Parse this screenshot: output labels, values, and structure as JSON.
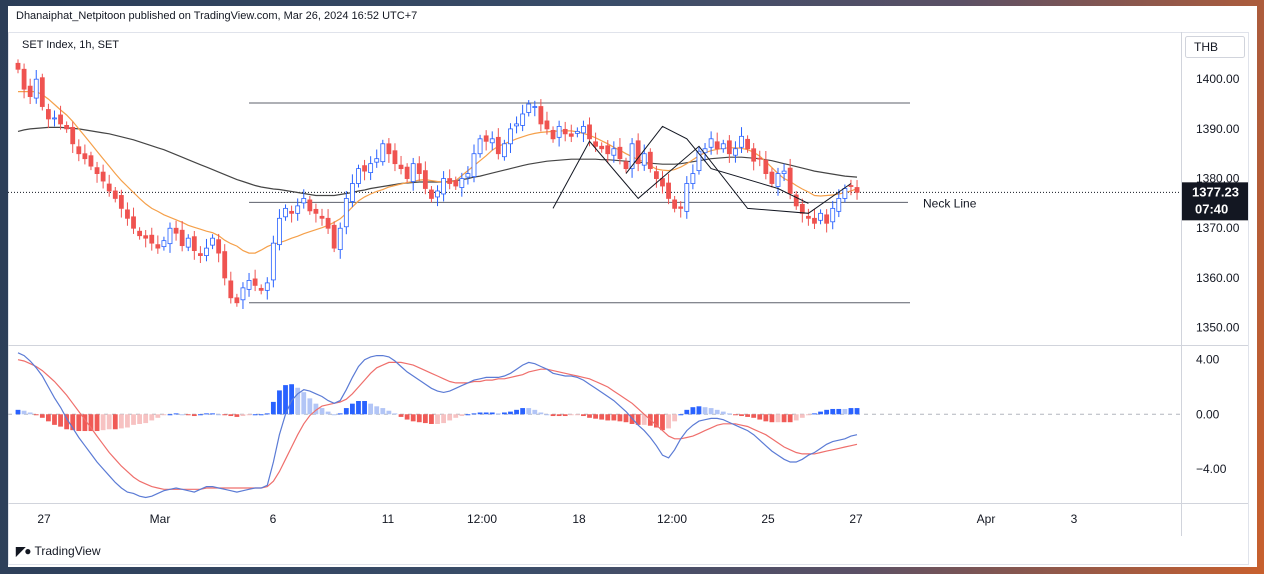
{
  "header": {
    "published_text": "Dhanaiphat_Netpitoon published on TradingView.com, Mar 26, 2024 16:52 UTC+7"
  },
  "symbol_label": "SET Index, 1h, SET",
  "currency_label": "THB",
  "footer": {
    "brand": "TradingView",
    "brand_icon": "tradingview-logo-icon"
  },
  "colors": {
    "up": "#2962ff",
    "down": "#ef5350",
    "ma_fast": "#f5a04a",
    "ma_slow": "#454545",
    "macd_line": "#5b7bd5",
    "signal_line": "#ef6f6c",
    "hist_up_strong": "#2962ff",
    "hist_up_weak": "#b2c5f6",
    "hist_down_strong": "#f05a56",
    "hist_down_weak": "#f7c2c2",
    "price_label_bg": "#131722"
  },
  "chart_data": [
    {
      "type": "candlestick",
      "title": "SET Index, 1h, SET",
      "y_ticks": [
        1400,
        1390,
        1380,
        1370,
        1360,
        1350
      ],
      "y_tick_labels": [
        "1400.00",
        "1390.00",
        "1380.00",
        "1370.00",
        "1360.00",
        "1350.00"
      ],
      "ylim": [
        1346.5,
        1409.5
      ],
      "x_tick_labels": [
        "27",
        "Mar",
        "6",
        "11",
        "12:00",
        "18",
        "12:00",
        "25",
        "27",
        "Apr",
        "3"
      ],
      "current_price": "1377.23",
      "countdown": "07:40",
      "horizontal_levels": [
        {
          "name": "resistance",
          "value": 1395.2,
          "label": ""
        },
        {
          "name": "neck-line",
          "value": 1375.2,
          "label": "Neck Line"
        },
        {
          "name": "support",
          "value": 1355.0,
          "label": ""
        }
      ],
      "close": [
        1402.0,
        1398.0,
        1396.5,
        1400.0,
        1394.5,
        1392.0,
        1392.2,
        1391.0,
        1390.0,
        1387.0,
        1385.0,
        1384.0,
        1382.5,
        1381.0,
        1379.5,
        1377.5,
        1376.0,
        1374.0,
        1372.0,
        1370.0,
        1368.5,
        1368.0,
        1367.0,
        1366.0,
        1367.5,
        1370.0,
        1369.0,
        1366.5,
        1368.0,
        1365.5,
        1364.5,
        1366.0,
        1368.0,
        1365.0,
        1360.0,
        1356.0,
        1355.0,
        1358.0,
        1359.5,
        1358.5,
        1357.5,
        1359.0,
        1367.0,
        1372.0,
        1374.0,
        1373.0,
        1374.5,
        1376.0,
        1373.5,
        1373.0,
        1372.0,
        1370.0,
        1366.0,
        1370.0,
        1376.0,
        1379.0,
        1382.0,
        1381.5,
        1383.0,
        1384.0,
        1387.0,
        1385.0,
        1383.0,
        1382.0,
        1380.0,
        1383.0,
        1381.0,
        1378.0,
        1376.0,
        1377.5,
        1380.0,
        1379.0,
        1378.5,
        1380.0,
        1381.0,
        1385.0,
        1388.0,
        1387.5,
        1388.0,
        1385.0,
        1387.0,
        1390.0,
        1391.0,
        1393.0,
        1395.0,
        1394.5,
        1391.0,
        1390.0,
        1388.0,
        1390.5,
        1389.0,
        1388.5,
        1389.5,
        1390.5,
        1388.0,
        1386.5,
        1386.0,
        1385.0,
        1386.0,
        1384.0,
        1382.0,
        1387.0,
        1383.0,
        1385.0,
        1382.0,
        1380.0,
        1378.5,
        1376.0,
        1374.0,
        1374.0,
        1379.0,
        1381.0,
        1385.5,
        1386.0,
        1388.0,
        1386.0,
        1387.0,
        1385.0,
        1386.0,
        1388.5,
        1386.0,
        1383.5,
        1384.0,
        1381.0,
        1379.0,
        1381.0,
        1381.5,
        1377.0,
        1374.5,
        1373.0,
        1372.0,
        1371.0,
        1373.0,
        1371.0,
        1374.0,
        1376.0,
        1378.0,
        1378.5,
        1377.23
      ],
      "ma_fast": [
        1397.5,
        1397.5,
        1397.5,
        1397.5,
        1396.9,
        1396.0,
        1394.9,
        1393.8,
        1392.8,
        1391.5,
        1390.0,
        1388.5,
        1387.0,
        1385.5,
        1384.0,
        1382.5,
        1381.0,
        1379.6,
        1378.4,
        1377.2,
        1376.0,
        1374.9,
        1374.0,
        1373.4,
        1372.7,
        1372.2,
        1371.7,
        1371.2,
        1370.6,
        1370.2,
        1369.8,
        1369.4,
        1369.1,
        1368.5,
        1367.6,
        1366.9,
        1366.4,
        1365.5,
        1365.0,
        1365.0,
        1365.6,
        1366.3,
        1366.8,
        1367.1,
        1367.5,
        1368.0,
        1368.4,
        1368.9,
        1369.3,
        1369.7,
        1370.1,
        1370.6,
        1371.2,
        1371.9,
        1373.0,
        1374.3,
        1375.5,
        1376.3,
        1376.9,
        1377.4,
        1377.8,
        1378.3,
        1378.6,
        1378.9,
        1379.2,
        1379.4,
        1379.7,
        1379.8,
        1379.6,
        1379.4,
        1379.3,
        1379.2,
        1379.6,
        1380.6,
        1381.6,
        1382.6,
        1383.6,
        1384.6,
        1385.7,
        1386.5,
        1387.0,
        1387.5,
        1388.0,
        1388.4,
        1388.8,
        1389.1,
        1389.3,
        1389.4,
        1389.5,
        1389.6,
        1389.6,
        1389.6,
        1389.4,
        1389.1,
        1388.7,
        1388.2,
        1387.6,
        1387.0,
        1386.3,
        1385.7,
        1385.0,
        1384.4,
        1383.8,
        1383.4,
        1382.6,
        1381.9,
        1381.7,
        1381.6,
        1381.8,
        1382.3,
        1383.0,
        1383.8,
        1384.6,
        1385.2,
        1385.6,
        1385.9,
        1386.1,
        1386.2,
        1386.2,
        1386.1,
        1385.8,
        1385.3,
        1384.5,
        1383.4,
        1382.2,
        1381.0,
        1380.0,
        1379.4,
        1378.6,
        1377.9,
        1377.3,
        1376.6,
        1376.5,
        1376.6,
        1376.7,
        1376.9,
        1377.2,
        1377.5,
        1378.0
      ],
      "ma_slow": [
        1389.5,
        1389.8,
        1390.0,
        1390.1,
        1390.2,
        1390.3,
        1390.3,
        1390.3,
        1390.2,
        1390.1,
        1390.0,
        1389.8,
        1389.6,
        1389.4,
        1389.2,
        1389.0,
        1388.7,
        1388.4,
        1388.1,
        1387.8,
        1387.4,
        1387.0,
        1386.6,
        1386.2,
        1385.8,
        1385.3,
        1384.8,
        1384.3,
        1383.8,
        1383.3,
        1382.8,
        1382.3,
        1381.8,
        1381.3,
        1380.8,
        1380.3,
        1379.8,
        1379.4,
        1379.0,
        1378.6,
        1378.3,
        1378.1,
        1377.9,
        1377.8,
        1377.6,
        1377.4,
        1377.2,
        1377.0,
        1376.8,
        1376.6,
        1376.6,
        1376.6,
        1376.6,
        1376.8,
        1377.0,
        1377.2,
        1377.5,
        1377.7,
        1378.0,
        1378.2,
        1378.4,
        1378.6,
        1378.8,
        1379.0,
        1379.1,
        1379.2,
        1379.3,
        1379.3,
        1379.3,
        1379.3,
        1379.3,
        1379.4,
        1379.6,
        1379.8,
        1380.0,
        1380.3,
        1380.5,
        1380.8,
        1381.1,
        1381.4,
        1381.7,
        1382.0,
        1382.3,
        1382.6,
        1382.9,
        1383.1,
        1383.3,
        1383.5,
        1383.6,
        1383.7,
        1383.8,
        1383.9,
        1383.9,
        1383.9,
        1383.9,
        1383.9,
        1383.8,
        1383.8,
        1383.7,
        1383.6,
        1383.5,
        1383.4,
        1383.3,
        1383.2,
        1383.1,
        1383.0,
        1382.9,
        1382.9,
        1382.9,
        1383.0,
        1383.2,
        1383.4,
        1383.6,
        1383.8,
        1384.0,
        1384.1,
        1384.2,
        1384.3,
        1384.3,
        1384.3,
        1384.2,
        1384.1,
        1384.0,
        1383.8,
        1383.6,
        1383.3,
        1383.0,
        1382.7,
        1382.4,
        1382.1,
        1381.8,
        1381.5,
        1381.3,
        1381.1,
        1380.9,
        1380.7,
        1380.5,
        1380.4,
        1380.3
      ],
      "pattern_lines": [
        [
          [
            88,
            1374.0
          ],
          [
            94,
            1387.5
          ],
          [
            102,
            1376.0
          ],
          [
            112,
            1386.5
          ],
          [
            120,
            1374.0
          ],
          [
            130,
            1373.0
          ],
          [
            137,
            1379.0
          ]
        ],
        [
          [
            100,
            1381.0
          ],
          [
            106,
            1390.5
          ],
          [
            110,
            1388.0
          ],
          [
            114,
            1382.0
          ],
          [
            125,
            1378.0
          ],
          [
            130,
            1375.0
          ]
        ]
      ]
    },
    {
      "type": "macd",
      "y_ticks": [
        4.0,
        0.0,
        -4.0
      ],
      "y_tick_labels": [
        "4.00",
        "0.00",
        "−4.00"
      ],
      "ylim": [
        -6.5,
        5.0
      ],
      "macd": [
        4.5,
        4.3,
        3.9,
        3.4,
        2.8,
        2.0,
        1.2,
        0.5,
        -0.3,
        -1.0,
        -1.7,
        -2.3,
        -2.9,
        -3.5,
        -4.0,
        -4.5,
        -5.0,
        -5.4,
        -5.7,
        -5.8,
        -6.0,
        -6.1,
        -6.0,
        -5.8,
        -5.6,
        -5.5,
        -5.4,
        -5.5,
        -5.6,
        -5.7,
        -5.5,
        -5.3,
        -5.3,
        -5.4,
        -5.5,
        -5.6,
        -5.7,
        -5.6,
        -5.5,
        -5.4,
        -5.4,
        -5.2,
        -3.5,
        -1.5,
        0.0,
        1.0,
        1.5,
        1.8,
        1.7,
        1.5,
        1.3,
        1.0,
        0.8,
        1.0,
        1.8,
        2.7,
        3.5,
        4.0,
        4.2,
        4.3,
        4.3,
        4.2,
        3.9,
        3.5,
        3.1,
        2.8,
        2.5,
        2.2,
        1.9,
        1.7,
        1.6,
        1.7,
        1.9,
        2.1,
        2.3,
        2.5,
        2.6,
        2.7,
        2.7,
        2.7,
        2.8,
        3.0,
        3.3,
        3.6,
        3.8,
        3.7,
        3.5,
        3.3,
        3.0,
        2.9,
        2.8,
        2.8,
        2.7,
        2.5,
        2.2,
        1.9,
        1.6,
        1.3,
        1.0,
        0.6,
        0.2,
        -0.3,
        -0.8,
        -1.2,
        -1.7,
        -2.3,
        -3.0,
        -3.2,
        -2.6,
        -1.8,
        -1.2,
        -0.8,
        -0.5,
        -0.4,
        -0.3,
        -0.3,
        -0.4,
        -0.6,
        -0.8,
        -1.0,
        -1.2,
        -1.5,
        -1.9,
        -2.3,
        -2.7,
        -3.0,
        -3.3,
        -3.5,
        -3.5,
        -3.3,
        -3.0,
        -2.8,
        -2.5,
        -2.2,
        -2.0,
        -1.9,
        -1.8,
        -1.6,
        -1.5
      ],
      "signal": [
        4.0,
        3.9,
        3.7,
        3.5,
        3.2,
        2.8,
        2.4,
        1.9,
        1.4,
        0.8,
        0.2,
        -0.4,
        -1.0,
        -1.6,
        -2.2,
        -2.8,
        -3.3,
        -3.8,
        -4.2,
        -4.6,
        -4.9,
        -5.1,
        -5.3,
        -5.4,
        -5.5,
        -5.5,
        -5.5,
        -5.5,
        -5.5,
        -5.5,
        -5.5,
        -5.4,
        -5.4,
        -5.4,
        -5.4,
        -5.4,
        -5.4,
        -5.4,
        -5.4,
        -5.4,
        -5.4,
        -5.3,
        -4.9,
        -4.2,
        -3.3,
        -2.4,
        -1.5,
        -0.7,
        -0.1,
        0.3,
        0.6,
        0.7,
        0.8,
        0.9,
        1.1,
        1.5,
        2.0,
        2.5,
        3.0,
        3.4,
        3.6,
        3.8,
        3.8,
        3.8,
        3.7,
        3.6,
        3.4,
        3.2,
        3.0,
        2.8,
        2.6,
        2.4,
        2.3,
        2.3,
        2.3,
        2.4,
        2.4,
        2.5,
        2.5,
        2.6,
        2.6,
        2.7,
        2.8,
        2.9,
        3.1,
        3.2,
        3.3,
        3.3,
        3.2,
        3.1,
        3.0,
        2.9,
        2.8,
        2.7,
        2.6,
        2.4,
        2.2,
        2.0,
        1.7,
        1.4,
        1.1,
        0.8,
        0.4,
        0.0,
        -0.4,
        -0.8,
        -1.2,
        -1.6,
        -1.8,
        -1.8,
        -1.7,
        -1.6,
        -1.4,
        -1.2,
        -1.0,
        -0.8,
        -0.7,
        -0.7,
        -0.7,
        -0.8,
        -0.9,
        -1.1,
        -1.3,
        -1.5,
        -1.8,
        -2.1,
        -2.4,
        -2.6,
        -2.8,
        -2.9,
        -2.9,
        -2.9,
        -2.8,
        -2.7,
        -2.6,
        -2.5,
        -2.4,
        -2.3,
        -2.2
      ]
    }
  ]
}
